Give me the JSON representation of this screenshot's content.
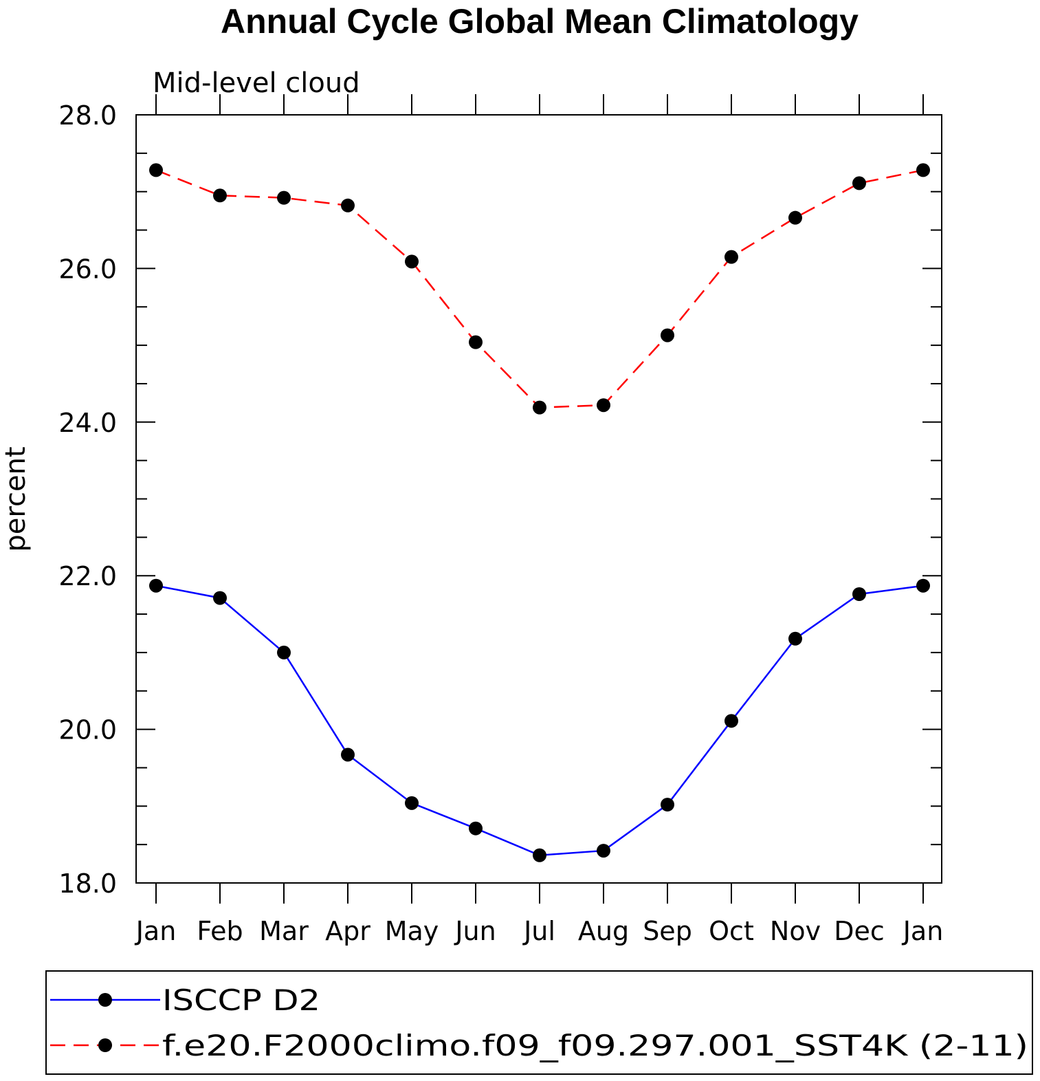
{
  "chart_data": {
    "type": "line",
    "title": "Annual Cycle Global Mean Climatology",
    "subtitle": "Mid-level cloud",
    "xlabel": "",
    "ylabel": "percent",
    "ylim": [
      18.0,
      28.0
    ],
    "yticks": [
      "18.0",
      "20.0",
      "22.0",
      "24.0",
      "26.0",
      "28.0"
    ],
    "categories": [
      "Jan",
      "Feb",
      "Mar",
      "Apr",
      "May",
      "Jun",
      "Jul",
      "Aug",
      "Sep",
      "Oct",
      "Nov",
      "Dec",
      "Jan"
    ],
    "grid": false,
    "legend_position": "bottom",
    "series": [
      {
        "name": "ISCCP D2",
        "color": "#0000ff",
        "dash": "solid",
        "marker": "filled-circle",
        "values": [
          21.87,
          21.71,
          21.0,
          19.67,
          19.04,
          18.71,
          18.36,
          18.42,
          19.02,
          20.11,
          21.18,
          21.76,
          21.87
        ]
      },
      {
        "name": "f.e20.F2000climo.f09_f09.297.001_SST4K (2-11)",
        "color": "#ff0000",
        "dash": "dashed",
        "marker": "filled-circle",
        "values": [
          27.28,
          26.95,
          26.92,
          26.82,
          26.09,
          25.04,
          24.19,
          24.22,
          25.13,
          26.15,
          26.66,
          27.11,
          27.28
        ]
      }
    ]
  }
}
